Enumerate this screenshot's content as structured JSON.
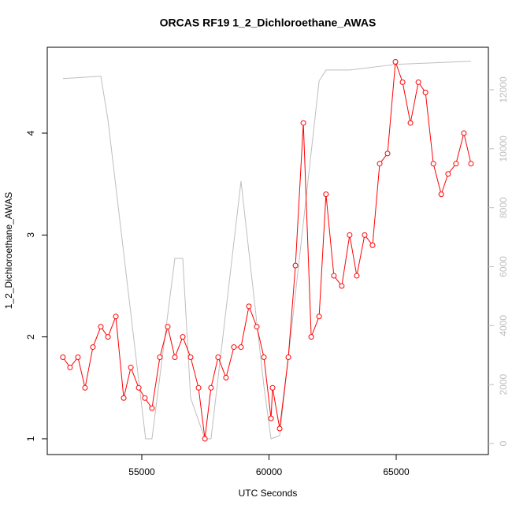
{
  "chart_data": {
    "type": "line",
    "title": "ORCAS RF19 1_2_Dichloroethane_AWAS",
    "x_label": "UTC Seconds",
    "y_label": "1_2_Dichloroethane_AWAS",
    "xlim": [
      51285,
      68622
    ],
    "ylim": [
      0.845,
      4.843
    ],
    "y2lim": [
      -374,
      13443
    ],
    "xticks": [
      55000,
      60000,
      65000
    ],
    "yticks": [
      1,
      2,
      3,
      4
    ],
    "y2ticks": [
      0,
      2000,
      4000,
      6000,
      8000,
      10000,
      12000
    ],
    "series": [
      {
        "color": "#ff0000",
        "markers": true,
        "x": [
          51900,
          52180,
          52490,
          52770,
          53080,
          53390,
          53670,
          53980,
          54290,
          54570,
          54880,
          55120,
          55400,
          55710,
          56020,
          56300,
          56610,
          56920,
          57230,
          57480,
          57720,
          58000,
          58310,
          58620,
          58900,
          59210,
          59520,
          59800,
          60080,
          60140,
          60420,
          60760,
          61040,
          61350,
          61660,
          61970,
          62240,
          62550,
          62860,
          63170,
          63450,
          63760,
          64070,
          64350,
          64660,
          64970,
          65250,
          65560,
          65870,
          66150,
          66460,
          66770,
          67040,
          67350,
          67660,
          67940
        ],
        "values": [
          1.8,
          1.7,
          1.8,
          1.5,
          1.9,
          2.1,
          2.0,
          2.2,
          1.4,
          1.7,
          1.5,
          1.4,
          1.3,
          1.8,
          2.1,
          1.8,
          2.0,
          1.8,
          1.5,
          1.0,
          1.5,
          1.8,
          1.6,
          1.9,
          1.9,
          2.3,
          2.1,
          1.8,
          1.2,
          1.5,
          1.1,
          1.8,
          2.7,
          4.1,
          2.0,
          2.2,
          3.4,
          2.6,
          2.5,
          3.0,
          2.6,
          3.0,
          2.9,
          3.7,
          3.8,
          4.7,
          4.5,
          4.1,
          4.5,
          4.4,
          3.7,
          3.4,
          3.6,
          3.7,
          4.0,
          3.7
        ]
      },
      {
        "color": "#bebebe",
        "axis": "y2",
        "markers": false,
        "x": [
          51900,
          53390,
          53670,
          55150,
          55400,
          56300,
          56610,
          56920,
          57480,
          57720,
          58900,
          59800,
          60080,
          60420,
          61970,
          62240,
          63170,
          64970,
          67940
        ],
        "values": [
          12380,
          12460,
          10990,
          160,
          160,
          6280,
          6280,
          1550,
          160,
          160,
          8900,
          1950,
          160,
          270,
          12300,
          12670,
          12670,
          12860,
          12970
        ]
      }
    ]
  }
}
